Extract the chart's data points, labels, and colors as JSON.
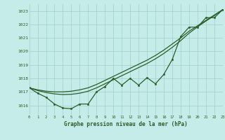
{
  "title": "Graphe pression niveau de la mer (hPa)",
  "bg_color": "#c5ece8",
  "grid_color": "#9ecfcb",
  "line_color": "#2a5e2a",
  "xlim": [
    0,
    23
  ],
  "ylim": [
    1015.3,
    1023.5
  ],
  "yticks": [
    1016,
    1017,
    1018,
    1019,
    1020,
    1021,
    1022,
    1023
  ],
  "xticks": [
    0,
    1,
    2,
    3,
    4,
    5,
    6,
    7,
    8,
    9,
    10,
    11,
    12,
    13,
    14,
    15,
    16,
    17,
    18,
    19,
    20,
    21,
    22,
    23
  ],
  "main_x": [
    0,
    1,
    2,
    3,
    4,
    5,
    6,
    7,
    8,
    9,
    10,
    11,
    12,
    13,
    14,
    15,
    16,
    17,
    18,
    19,
    20,
    21,
    22,
    23
  ],
  "main_y": [
    1017.3,
    1016.9,
    1016.6,
    1016.1,
    1015.8,
    1015.75,
    1016.1,
    1016.1,
    1017.0,
    1017.4,
    1018.0,
    1017.5,
    1018.0,
    1017.5,
    1018.05,
    1017.6,
    1018.3,
    1019.4,
    1021.1,
    1021.8,
    1021.8,
    1022.5,
    1022.5,
    1023.1
  ],
  "smooth1_x": [
    0,
    1,
    2,
    3,
    4,
    5,
    6,
    7,
    8,
    9,
    10,
    11,
    12,
    13,
    14,
    15,
    16,
    17,
    18,
    19,
    20,
    21,
    22,
    23
  ],
  "smooth1_y": [
    1017.3,
    1017.15,
    1017.05,
    1017.0,
    1017.0,
    1017.05,
    1017.15,
    1017.3,
    1017.55,
    1017.85,
    1018.15,
    1018.45,
    1018.75,
    1019.05,
    1019.35,
    1019.7,
    1020.1,
    1020.55,
    1021.0,
    1021.5,
    1021.9,
    1022.3,
    1022.7,
    1023.1
  ],
  "smooth2_x": [
    0,
    1,
    2,
    3,
    4,
    5,
    6,
    7,
    8,
    9,
    10,
    11,
    12,
    13,
    14,
    15,
    16,
    17,
    18,
    19,
    20,
    21,
    22,
    23
  ],
  "smooth2_y": [
    1017.3,
    1017.1,
    1016.95,
    1016.85,
    1016.8,
    1016.82,
    1016.9,
    1017.05,
    1017.3,
    1017.6,
    1017.9,
    1018.2,
    1018.5,
    1018.8,
    1019.1,
    1019.45,
    1019.85,
    1020.3,
    1020.8,
    1021.35,
    1021.82,
    1022.25,
    1022.65,
    1023.1
  ]
}
